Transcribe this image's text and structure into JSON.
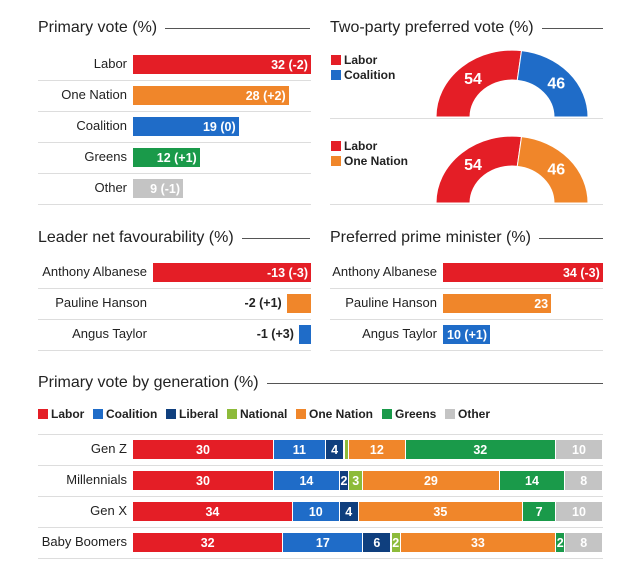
{
  "colors": {
    "Labor": "#e41e26",
    "Coalition": "#1f6cc8",
    "Liberal": "#0f3f7e",
    "National": "#8dbb3a",
    "One Nation": "#f0862a",
    "Greens": "#1a9a4a",
    "Other": "#c4c4c4"
  },
  "chart_data": [
    {
      "type": "bar",
      "title": "Primary vote (%)",
      "categories": [
        "Labor",
        "One Nation",
        "Coalition",
        "Greens",
        "Other"
      ],
      "values": [
        32,
        28,
        19,
        12,
        9
      ],
      "labels": [
        "32 (-2)",
        "28 (+2)",
        "19 (0)",
        "12 (+1)",
        "9 (-1)"
      ]
    },
    {
      "type": "pie",
      "title": "Two-party preferred vote (%)",
      "charts": [
        {
          "legend": [
            "Labor",
            "Coalition"
          ],
          "values": [
            54,
            46
          ]
        },
        {
          "legend": [
            "Labor",
            "One Nation"
          ],
          "values": [
            54,
            46
          ]
        }
      ]
    },
    {
      "type": "bar",
      "title": "Leader net favourability (%)",
      "categories": [
        "Anthony Albanese",
        "Pauline Hanson",
        "Angus Taylor"
      ],
      "values": [
        -13,
        -2,
        -1
      ],
      "labels": [
        "-13 (-3)",
        "-2 (+1)",
        "-1 (+3)"
      ],
      "colors": [
        "Labor",
        "One Nation",
        "Coalition"
      ]
    },
    {
      "type": "bar",
      "title": "Preferred prime minister (%)",
      "categories": [
        "Anthony Albanese",
        "Pauline Hanson",
        "Angus Taylor"
      ],
      "values": [
        34,
        23,
        10
      ],
      "labels": [
        "34 (-3)",
        "23",
        "10 (+1)"
      ],
      "colors": [
        "Labor",
        "One Nation",
        "Coalition"
      ]
    },
    {
      "type": "bar",
      "stacked": true,
      "title": "Primary vote by generation (%)",
      "legend": [
        "Labor",
        "Coalition",
        "Liberal",
        "National",
        "One Nation",
        "Greens",
        "Other"
      ],
      "categories": [
        "Gen Z",
        "Millennials",
        "Gen X",
        "Baby Boomers"
      ],
      "series": [
        {
          "name": "Labor",
          "values": [
            30,
            30,
            34,
            32
          ]
        },
        {
          "name": "Coalition",
          "values": [
            11,
            14,
            10,
            17
          ]
        },
        {
          "name": "Liberal",
          "values": [
            4,
            2,
            4,
            6
          ]
        },
        {
          "name": "National",
          "values": [
            1,
            3,
            0,
            2
          ]
        },
        {
          "name": "One Nation",
          "values": [
            12,
            29,
            35,
            33
          ]
        },
        {
          "name": "Greens",
          "values": [
            32,
            14,
            7,
            2
          ]
        },
        {
          "name": "Other",
          "values": [
            10,
            8,
            10,
            8
          ]
        }
      ]
    }
  ]
}
